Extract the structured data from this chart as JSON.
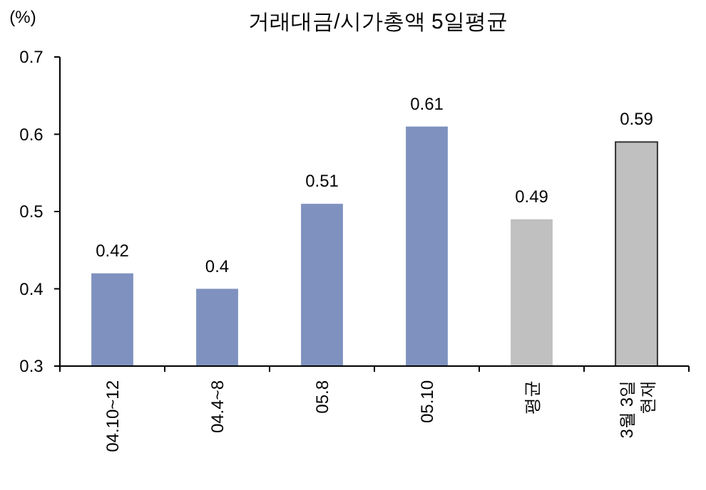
{
  "chart_data": {
    "type": "bar",
    "title": "거래대금/시가총액 5일평균",
    "ylabel": "(%)",
    "categories": [
      "04.10~12",
      "04.4~8",
      "05.8",
      "05.10",
      "평균",
      "3월 3일\n현재"
    ],
    "values": [
      0.42,
      0.4,
      0.51,
      0.61,
      0.49,
      0.59
    ],
    "colors": [
      "#7f92bf",
      "#7f92bf",
      "#7f92bf",
      "#7f92bf",
      "#c0c0c0",
      "#c0c0c0"
    ],
    "ylim": [
      0.3,
      0.7
    ],
    "yticks": [
      0.3,
      0.4,
      0.5,
      0.6,
      0.7
    ],
    "data_labels": true,
    "grid": false
  }
}
